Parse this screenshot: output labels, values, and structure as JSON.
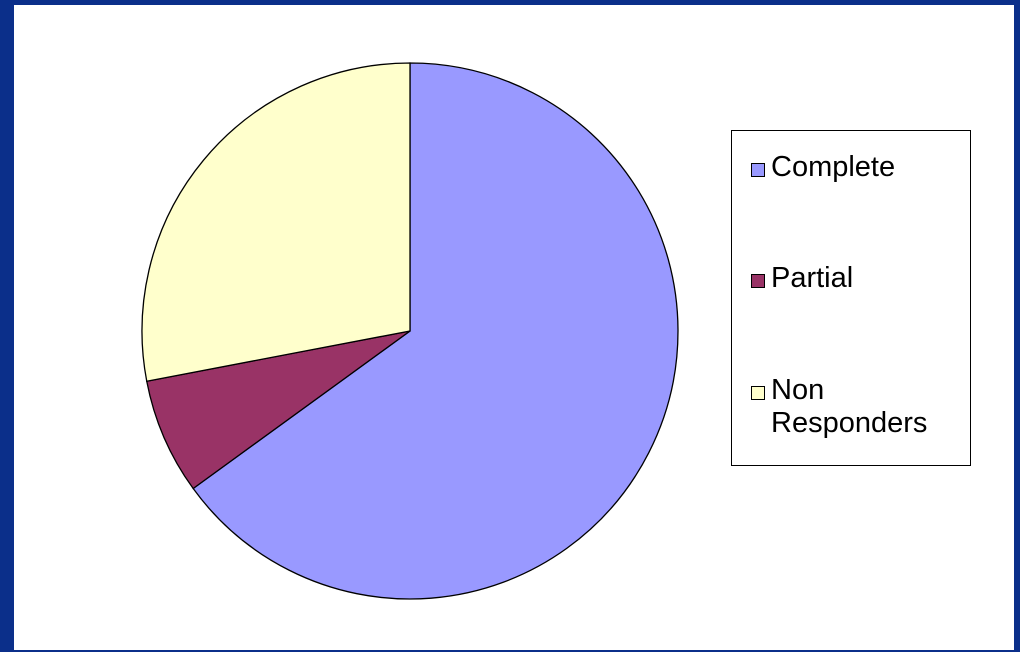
{
  "chart_data": {
    "type": "pie",
    "title": "",
    "legend_position": "right",
    "start_angle_deg": 0,
    "direction": "clockwise",
    "slices": [
      {
        "label": "Complete",
        "value": 65,
        "color": "#9999ff"
      },
      {
        "label": "Partial",
        "value": 7,
        "color": "#993366"
      },
      {
        "label": "Non Responders",
        "value": 28,
        "color": "#ffffcc"
      }
    ]
  },
  "colors": {
    "frame": "#0b2f8a",
    "panel": "#ffffff",
    "stroke": "#000000"
  }
}
